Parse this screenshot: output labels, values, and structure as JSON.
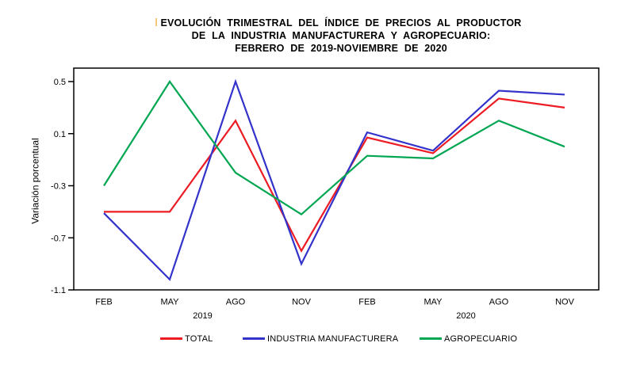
{
  "title": {
    "line1": "EVOLUCIÓN TRIMESTRAL DEL ÍNDICE DE PRECIOS AL PRODUCTOR",
    "line2": "DE LA INDUSTRIA MANUFACTURERA Y AGROPECUARIO:",
    "line3": "FEBRERO DE 2019-NOVIEMBRE DE 2020"
  },
  "chart_data": {
    "type": "line",
    "title": "EVOLUCIÓN TRIMESTRAL DEL ÍNDICE DE PRECIOS AL PRODUCTOR DE LA INDUSTRIA MANUFACTURERA Y AGROPECUARIO: FEBRERO DE 2019-NOVIEMBRE DE 2020",
    "xlabel": "",
    "ylabel": "Variación porcentual",
    "categories": [
      "FEB",
      "MAY",
      "AGO",
      "NOV",
      "FEB",
      "MAY",
      "AGO",
      "NOV"
    ],
    "year_groups": [
      {
        "label": "2019",
        "span": [
          0,
          3
        ]
      },
      {
        "label": "2020",
        "span": [
          4,
          7
        ]
      }
    ],
    "yticks": [
      0.5,
      0.1,
      -0.3,
      -0.7,
      -1.1
    ],
    "ylim": [
      -1.1,
      0.6
    ],
    "grid": false,
    "legend_position": "bottom",
    "series": [
      {
        "name": "TOTAL",
        "color": "#ED1C24",
        "values": [
          -0.5,
          -0.5,
          0.2,
          -0.8,
          0.07,
          -0.05,
          0.37,
          0.3
        ]
      },
      {
        "name": "INDUSTRIA MANUFACTURERA",
        "color": "#3333CC",
        "values": [
          -0.51,
          -1.02,
          0.5,
          -0.9,
          0.11,
          -0.03,
          0.43,
          0.4
        ]
      },
      {
        "name": "AGROPECUARIO",
        "color": "#00A651",
        "values": [
          -0.3,
          0.5,
          -0.2,
          -0.52,
          -0.07,
          -0.09,
          0.2,
          0.0
        ]
      }
    ]
  }
}
